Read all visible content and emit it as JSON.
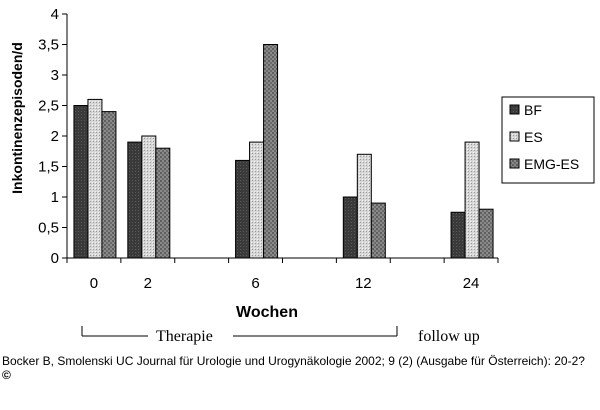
{
  "chart_data": {
    "type": "bar",
    "title": "",
    "ylabel": "Inkontinenzepisoden/d",
    "xlabel": "Wochen",
    "ylim": [
      0,
      4
    ],
    "yticks": [
      "0",
      "0,5",
      "1",
      "1,5",
      "2",
      "2,5",
      "3",
      "3,5",
      "4"
    ],
    "categories": [
      "0",
      "2",
      "6",
      "12",
      "24"
    ],
    "series": [
      {
        "name": "BF",
        "color": "#404040",
        "values": [
          2.5,
          1.9,
          1.6,
          1.0,
          0.75
        ]
      },
      {
        "name": "ES",
        "color": "#c8c8c8",
        "values": [
          2.6,
          2.0,
          1.9,
          1.7,
          1.9
        ]
      },
      {
        "name": "EMG-ES",
        "color": "#7a7a7a",
        "values": [
          2.4,
          1.8,
          3.5,
          0.9,
          0.8
        ]
      }
    ],
    "legend_position": "right",
    "annotations": {
      "therapy": "Therapie",
      "followup": "follow up"
    }
  },
  "footer": {
    "citation": "Bocker B, Smolenski UC Journal für Urologie und Urogynäkologie 2002; 9 (2) (Ausgabe für Österreich): 20-2?",
    "copyright": "©"
  }
}
